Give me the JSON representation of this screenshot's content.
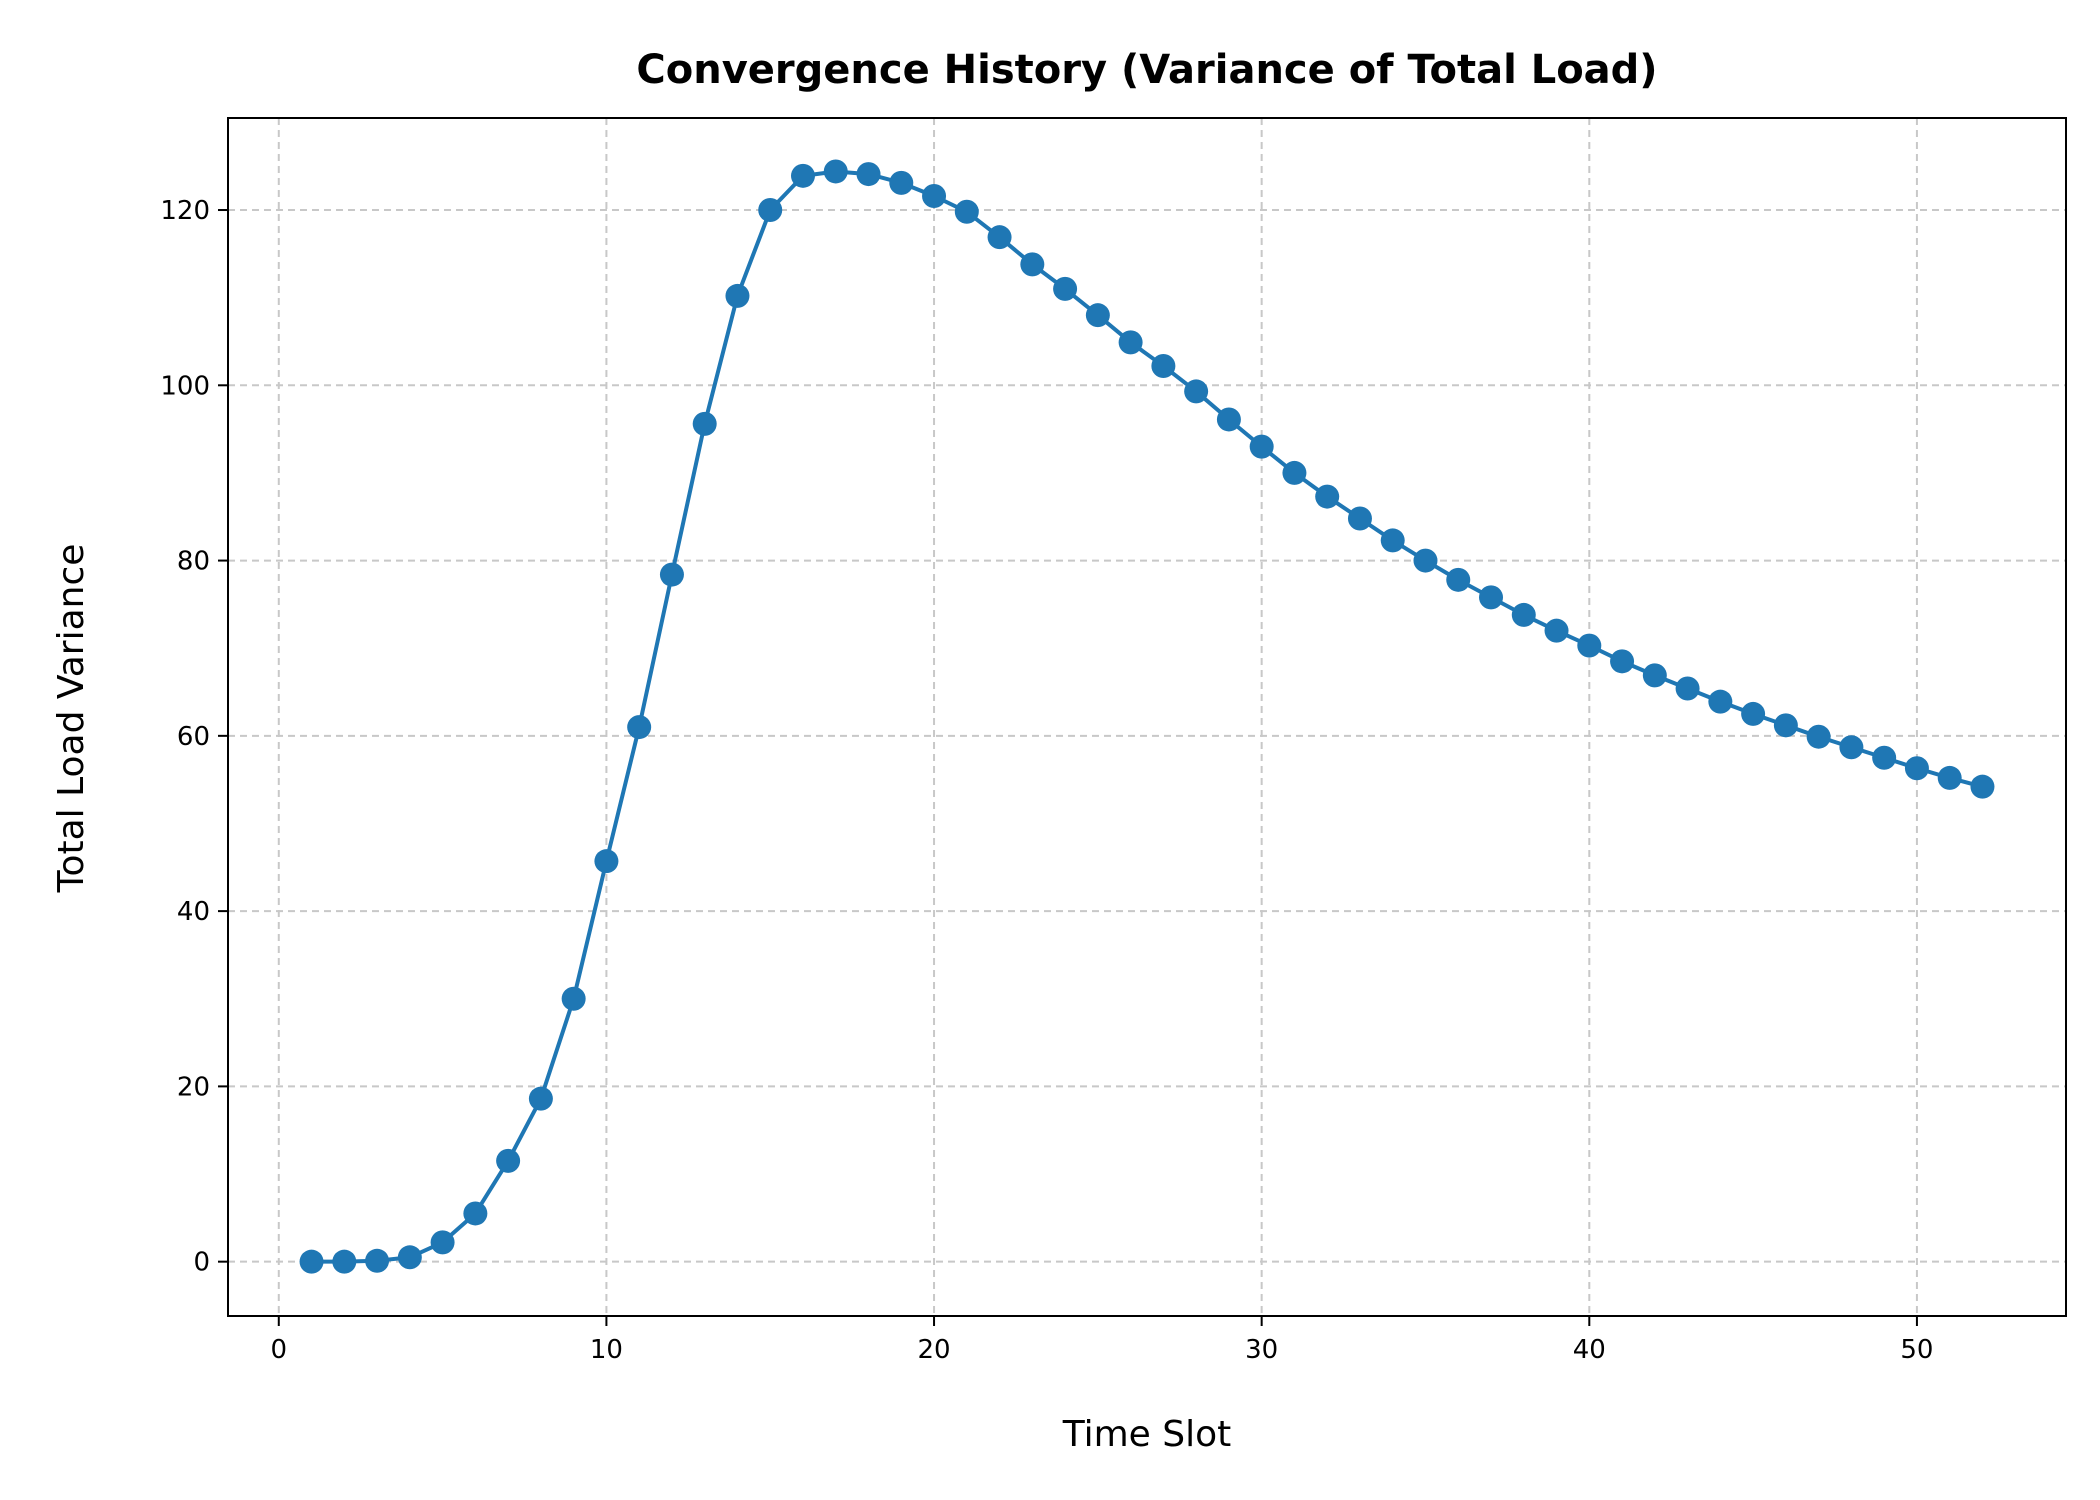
{
  "chart_data": {
    "type": "line",
    "title": "Convergence History (Variance of Total Load)",
    "xlabel": "Time Slot",
    "ylabel": "Total Load Variance",
    "xlim": [
      -1.55,
      54.55
    ],
    "ylim": [
      -6.2,
      130.5
    ],
    "xticks": [
      0,
      10,
      20,
      30,
      40,
      50
    ],
    "yticks": [
      0,
      20,
      40,
      60,
      80,
      100,
      120
    ],
    "grid": true,
    "grid_style": "dashed",
    "marker": "circle",
    "line_color": "#1f77b4",
    "series": [
      {
        "x": [
          1,
          2,
          3,
          4,
          5,
          6,
          7,
          8,
          9,
          10,
          11,
          12,
          13,
          14,
          15,
          16,
          17,
          18,
          19,
          20,
          21,
          22,
          23,
          24,
          25,
          26,
          27,
          28,
          29,
          30,
          31,
          32,
          33,
          34,
          35,
          36,
          37,
          38,
          39,
          40,
          41,
          42,
          43,
          44,
          45,
          46,
          47,
          48,
          49,
          50,
          51,
          52
        ],
        "y": [
          0.0,
          0.0,
          0.1,
          0.5,
          2.2,
          5.5,
          11.5,
          18.6,
          30.0,
          45.7,
          61.0,
          78.4,
          95.6,
          110.2,
          120.0,
          123.9,
          124.4,
          124.1,
          123.1,
          121.6,
          119.8,
          116.9,
          113.8,
          111.0,
          108.0,
          104.9,
          102.2,
          99.3,
          96.1,
          93.0,
          90.0,
          87.3,
          84.8,
          82.3,
          80.0,
          77.8,
          75.8,
          73.8,
          72.0,
          70.3,
          68.5,
          66.9,
          65.4,
          63.9,
          62.5,
          61.2,
          59.9,
          58.7,
          57.5,
          56.3,
          55.2,
          54.2
        ]
      }
    ]
  }
}
